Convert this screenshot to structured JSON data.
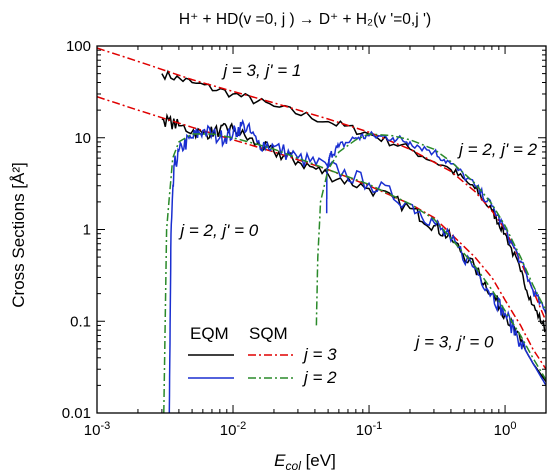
{
  "chart_data": {
    "type": "line",
    "title": "H⁺ + HD(v =0, j ) → D⁺ + H₂(v '=0,j ')",
    "xlabel": "Ecol [eV]",
    "ylabel": "Cross Sections [Å²]",
    "x_scale": "log",
    "y_scale": "log",
    "xlim": [
      0.001,
      2
    ],
    "ylim": [
      0.01,
      100
    ],
    "x_ticks": [
      {
        "value": 0.001,
        "base": "10",
        "exp": "-3"
      },
      {
        "value": 0.01,
        "base": "10",
        "exp": "-2"
      },
      {
        "value": 0.1,
        "base": "10",
        "exp": "-1"
      },
      {
        "value": 1,
        "base": "10",
        "exp": "0"
      }
    ],
    "y_ticks": [
      {
        "value": 0.01,
        "label": "0.01"
      },
      {
        "value": 0.1,
        "label": "0.1"
      },
      {
        "value": 1,
        "label": "1"
      },
      {
        "value": 10,
        "label": "10"
      },
      {
        "value": 100,
        "label": "100"
      }
    ],
    "legend": {
      "placement": "bottom-left",
      "headers": [
        "EQM",
        "SQM"
      ],
      "rows": [
        {
          "label": "j = 3",
          "eqm_color": "#000000",
          "sqm_color": "#e00000"
        },
        {
          "label": "j = 2",
          "eqm_color": "#1a2fd0",
          "sqm_color": "#2a8a2a"
        }
      ]
    },
    "annotations": [
      {
        "text": "j = 3, j' = 1",
        "at": [
          0.0085,
          47
        ]
      },
      {
        "text": "j = 2, j' = 2",
        "at": [
          0.46,
          6.5
        ]
      },
      {
        "text": "j = 2, j' = 0",
        "at": [
          0.0041,
          0.85
        ]
      },
      {
        "text": "j = 3, j' = 0",
        "at": [
          0.22,
          0.052
        ]
      }
    ],
    "series": [
      {
        "name": "EQM j=3, j'=1",
        "method": "EQM",
        "j": 3,
        "color": "#000000",
        "dash": "solid",
        "noise": 0.05,
        "points": [
          [
            0.003,
            50
          ],
          [
            0.005,
            40
          ],
          [
            0.01,
            30
          ],
          [
            0.02,
            22
          ],
          [
            0.05,
            15
          ],
          [
            0.1,
            11
          ],
          [
            0.2,
            7.5
          ],
          [
            0.4,
            4.5
          ],
          [
            0.6,
            2.8
          ],
          [
            0.8,
            1.6
          ],
          [
            1.0,
            0.9
          ],
          [
            1.3,
            0.35
          ],
          [
            1.6,
            0.15
          ],
          [
            2.0,
            0.08
          ]
        ]
      },
      {
        "name": "SQM j=3, j'=1",
        "method": "SQM",
        "j": 3,
        "color": "#e00000",
        "dash": "dashdot",
        "noise": 0,
        "points": [
          [
            0.001,
            95
          ],
          [
            0.002,
            68
          ],
          [
            0.005,
            43
          ],
          [
            0.01,
            32
          ],
          [
            0.02,
            24
          ],
          [
            0.05,
            16
          ],
          [
            0.1,
            11.5
          ],
          [
            0.2,
            7.5
          ],
          [
            0.4,
            4.3
          ],
          [
            0.6,
            2.6
          ],
          [
            0.8,
            1.6
          ],
          [
            1.0,
            1.0
          ],
          [
            1.3,
            0.45
          ],
          [
            1.6,
            0.22
          ],
          [
            2.0,
            0.1
          ]
        ]
      },
      {
        "name": "EQM j=3, j'=0",
        "method": "EQM",
        "j": 3,
        "color": "#000000",
        "dash": "solid",
        "noise": 0.07,
        "points": [
          [
            0.003,
            16
          ],
          [
            0.004,
            13.5
          ],
          [
            0.006,
            11
          ],
          [
            0.008,
            12
          ],
          [
            0.01,
            12.5
          ],
          [
            0.015,
            8.5
          ],
          [
            0.02,
            7
          ],
          [
            0.03,
            5.5
          ],
          [
            0.05,
            4
          ],
          [
            0.1,
            2.8
          ],
          [
            0.2,
            1.7
          ],
          [
            0.3,
            1.1
          ],
          [
            0.4,
            0.8
          ],
          [
            0.6,
            0.38
          ],
          [
            0.8,
            0.2
          ],
          [
            1.0,
            0.12
          ],
          [
            1.3,
            0.06
          ],
          [
            1.6,
            0.035
          ],
          [
            2.0,
            0.022
          ]
        ]
      },
      {
        "name": "SQM j=3, j'=0",
        "method": "SQM",
        "j": 3,
        "color": "#e00000",
        "dash": "dashdot",
        "noise": 0,
        "points": [
          [
            0.001,
            28
          ],
          [
            0.002,
            20
          ],
          [
            0.005,
            13
          ],
          [
            0.01,
            9.5
          ],
          [
            0.02,
            7
          ],
          [
            0.05,
            4.5
          ],
          [
            0.1,
            3
          ],
          [
            0.2,
            1.9
          ],
          [
            0.3,
            1.35
          ],
          [
            0.4,
            0.9
          ],
          [
            0.6,
            0.5
          ],
          [
            0.8,
            0.3
          ],
          [
            1.0,
            0.17
          ],
          [
            1.3,
            0.09
          ],
          [
            1.6,
            0.05
          ],
          [
            2.0,
            0.03
          ]
        ]
      },
      {
        "name": "EQM j=2, j'=0",
        "method": "EQM",
        "j": 2,
        "color": "#1a2fd0",
        "dash": "solid",
        "noise": 0.09,
        "points": [
          [
            0.0034,
            0.01
          ],
          [
            0.0035,
            0.9
          ],
          [
            0.0037,
            5
          ],
          [
            0.0042,
            8
          ],
          [
            0.005,
            10
          ],
          [
            0.006,
            12
          ],
          [
            0.008,
            10
          ],
          [
            0.01,
            11
          ],
          [
            0.012,
            14
          ],
          [
            0.015,
            9
          ],
          [
            0.02,
            8
          ],
          [
            0.03,
            6
          ],
          [
            0.05,
            4.8
          ],
          [
            0.1,
            3.2
          ],
          [
            0.2,
            1.9
          ],
          [
            0.3,
            1.2
          ],
          [
            0.4,
            0.75
          ],
          [
            0.6,
            0.38
          ],
          [
            0.8,
            0.2
          ],
          [
            1.0,
            0.12
          ],
          [
            1.3,
            0.06
          ],
          [
            1.6,
            0.035
          ],
          [
            2.0,
            0.02
          ]
        ]
      },
      {
        "name": "SQM j=2, j'=0",
        "method": "SQM",
        "j": 2,
        "color": "#2a8a2a",
        "dash": "dashdot",
        "noise": 0,
        "points": [
          [
            0.0031,
            0.01
          ],
          [
            0.00325,
            1
          ],
          [
            0.0036,
            6
          ],
          [
            0.004,
            9
          ],
          [
            0.005,
            11
          ],
          [
            0.007,
            11
          ],
          [
            0.01,
            10
          ],
          [
            0.015,
            8.5
          ],
          [
            0.02,
            7.5
          ],
          [
            0.05,
            4.5
          ],
          [
            0.1,
            3.1
          ],
          [
            0.2,
            1.9
          ],
          [
            0.3,
            1.3
          ],
          [
            0.4,
            0.8
          ],
          [
            0.6,
            0.4
          ],
          [
            0.8,
            0.22
          ],
          [
            1.0,
            0.13
          ],
          [
            1.3,
            0.07
          ],
          [
            1.6,
            0.04
          ],
          [
            2.0,
            0.023
          ]
        ]
      },
      {
        "name": "EQM j=2, j'=2",
        "method": "EQM",
        "j": 2,
        "color": "#1a2fd0",
        "dash": "solid",
        "noise": 0.05,
        "points": [
          [
            0.0488,
            1.5
          ],
          [
            0.049,
            4
          ],
          [
            0.05,
            5
          ],
          [
            0.052,
            6.5
          ],
          [
            0.06,
            8
          ],
          [
            0.08,
            10
          ],
          [
            0.1,
            10.5
          ],
          [
            0.15,
            10
          ],
          [
            0.2,
            9
          ],
          [
            0.3,
            7
          ],
          [
            0.4,
            5.2
          ],
          [
            0.6,
            3
          ],
          [
            0.8,
            1.8
          ],
          [
            1.0,
            1.0
          ],
          [
            1.3,
            0.45
          ],
          [
            1.6,
            0.22
          ],
          [
            2.0,
            0.12
          ]
        ]
      },
      {
        "name": "SQM j=2, j'=2",
        "method": "SQM",
        "j": 2,
        "color": "#2a8a2a",
        "dash": "dashdot",
        "noise": 0,
        "points": [
          [
            0.041,
            0.09
          ],
          [
            0.042,
            0.5
          ],
          [
            0.044,
            2
          ],
          [
            0.05,
            4.5
          ],
          [
            0.06,
            7
          ],
          [
            0.08,
            9.5
          ],
          [
            0.1,
            11
          ],
          [
            0.15,
            10.5
          ],
          [
            0.2,
            9.5
          ],
          [
            0.3,
            7.5
          ],
          [
            0.4,
            5.5
          ],
          [
            0.6,
            3.2
          ],
          [
            0.8,
            1.9
          ],
          [
            1.0,
            1.1
          ],
          [
            1.3,
            0.5
          ],
          [
            1.6,
            0.25
          ],
          [
            2.0,
            0.13
          ]
        ]
      }
    ]
  }
}
